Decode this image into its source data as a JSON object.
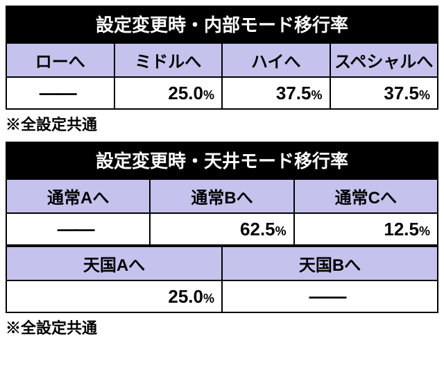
{
  "table1": {
    "title": "設定変更時・内部モード移行率",
    "headers": [
      "ローへ",
      "ミドルへ",
      "ハイへ",
      "スペシャルへ"
    ],
    "values": [
      "—",
      "25.0",
      "37.5",
      "37.5"
    ],
    "note": "※全設定共通",
    "colors": {
      "title_bg": "#000000",
      "title_fg": "#ffffff",
      "header_bg": "#c5c3ed",
      "cell_bg": "#ffffff",
      "border": "#000000"
    }
  },
  "table2": {
    "title": "設定変更時・天井モード移行率",
    "headers_top": [
      "通常Aへ",
      "通常Bへ",
      "通常Cへ"
    ],
    "values_top": [
      "—",
      "62.5",
      "12.5"
    ],
    "headers_bottom": [
      "天国Aへ",
      "天国Bへ"
    ],
    "values_bottom": [
      "25.0",
      "—"
    ],
    "note": "※全設定共通",
    "colors": {
      "title_bg": "#000000",
      "title_fg": "#ffffff",
      "header_bg": "#c5c3ed",
      "cell_bg": "#ffffff",
      "border": "#000000"
    }
  },
  "dash": "——",
  "pct_suffix": "%"
}
